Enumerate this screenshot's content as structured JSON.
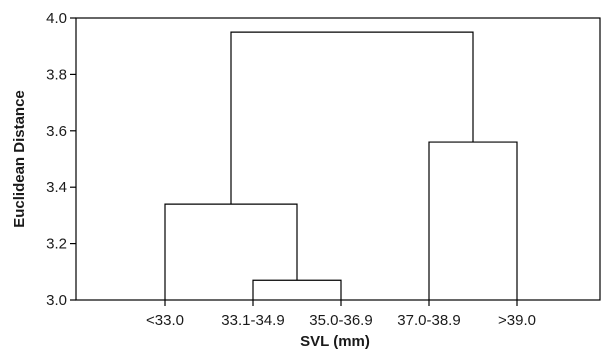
{
  "chart_data": {
    "type": "dendrogram",
    "title": "",
    "xlabel": "SVL (mm)",
    "ylabel": "Euclidean Distance",
    "ylim": [
      3.0,
      4.0
    ],
    "y_ticks": [
      "3.0",
      "3.2",
      "3.4",
      "3.6",
      "3.8",
      "4.0"
    ],
    "leaves": [
      "<33.0",
      "33.1-34.9",
      "35.0-36.9",
      "37.0-38.9",
      ">39.0"
    ],
    "merges": [
      {
        "left": "33.1-34.9",
        "right": "35.0-36.9",
        "height": 3.07
      },
      {
        "left": "<33.0",
        "right": "cluster(33.1-34.9, 35.0-36.9)",
        "height": 3.34
      },
      {
        "left": "37.0-38.9",
        "right": ">39.0",
        "height": 3.56
      },
      {
        "left": "cluster(<33.0, 33.1-34.9, 35.0-36.9)",
        "right": "cluster(37.0-38.9, >39.0)",
        "height": 3.95
      }
    ],
    "grid": false
  }
}
